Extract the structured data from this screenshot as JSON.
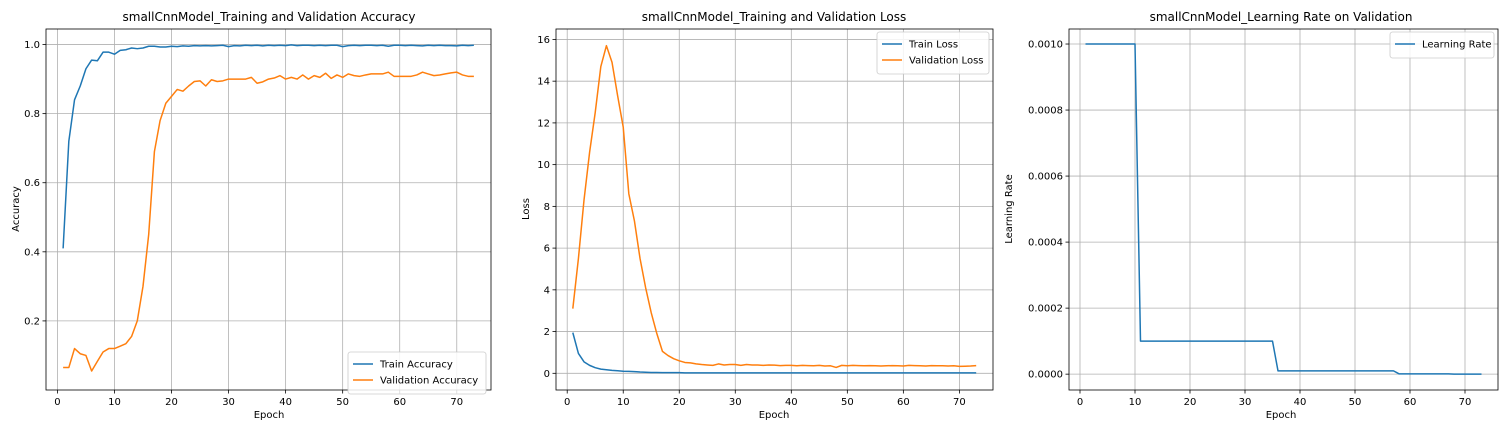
{
  "chart_data": [
    {
      "type": "line",
      "title": "smallCnnModel_Training and Validation Accuracy",
      "xlabel": "Epoch",
      "ylabel": "Accuracy",
      "xlim": [
        -2,
        76
      ],
      "ylim": [
        0.0,
        1.045
      ],
      "xticks": [
        0,
        10,
        20,
        30,
        40,
        50,
        60,
        70
      ],
      "yticks": [
        0.2,
        0.4,
        0.6,
        0.8,
        1.0
      ],
      "ytick_labels": [
        "0.2",
        "0.4",
        "0.6",
        "0.8",
        "1.0"
      ],
      "grid": true,
      "legend": "lower-right",
      "series": [
        {
          "name": "Train Accuracy",
          "color": "#1f77b4",
          "x": [
            1,
            2,
            3,
            4,
            5,
            6,
            7,
            8,
            9,
            10,
            11,
            12,
            13,
            14,
            15,
            16,
            17,
            18,
            19,
            20,
            21,
            22,
            23,
            24,
            25,
            26,
            27,
            28,
            29,
            30,
            31,
            32,
            33,
            34,
            35,
            36,
            37,
            38,
            39,
            40,
            41,
            42,
            43,
            44,
            45,
            46,
            47,
            48,
            49,
            50,
            51,
            52,
            53,
            54,
            55,
            56,
            57,
            58,
            59,
            60,
            61,
            62,
            63,
            64,
            65,
            66,
            67,
            68,
            69,
            70,
            71,
            72,
            73
          ],
          "values": [
            0.41,
            0.72,
            0.84,
            0.88,
            0.93,
            0.955,
            0.953,
            0.978,
            0.978,
            0.972,
            0.983,
            0.985,
            0.99,
            0.988,
            0.99,
            0.995,
            0.995,
            0.993,
            0.993,
            0.995,
            0.994,
            0.996,
            0.995,
            0.997,
            0.996,
            0.997,
            0.996,
            0.997,
            0.998,
            0.994,
            0.997,
            0.996,
            0.998,
            0.997,
            0.998,
            0.996,
            0.998,
            0.997,
            0.998,
            0.997,
            0.999,
            0.997,
            0.998,
            0.998,
            0.997,
            0.998,
            0.997,
            0.998,
            0.998,
            0.994,
            0.997,
            0.998,
            0.997,
            0.998,
            0.998,
            0.997,
            0.998,
            0.995,
            0.998,
            0.998,
            0.997,
            0.998,
            0.997,
            0.996,
            0.998,
            0.997,
            0.998,
            0.997,
            0.997,
            0.996,
            0.998,
            0.997,
            0.998
          ]
        },
        {
          "name": "Validation Accuracy",
          "color": "#ff7f0e",
          "x": [
            1,
            2,
            3,
            4,
            5,
            6,
            7,
            8,
            9,
            10,
            11,
            12,
            13,
            14,
            15,
            16,
            17,
            18,
            19,
            20,
            21,
            22,
            23,
            24,
            25,
            26,
            27,
            28,
            29,
            30,
            31,
            32,
            33,
            34,
            35,
            36,
            37,
            38,
            39,
            40,
            41,
            42,
            43,
            44,
            45,
            46,
            47,
            48,
            49,
            50,
            51,
            52,
            53,
            54,
            55,
            56,
            57,
            58,
            59,
            60,
            61,
            62,
            63,
            64,
            65,
            66,
            67,
            68,
            69,
            70,
            71,
            72,
            73
          ],
          "values": [
            0.065,
            0.065,
            0.12,
            0.105,
            0.1,
            0.055,
            0.083,
            0.11,
            0.12,
            0.12,
            0.127,
            0.134,
            0.155,
            0.2,
            0.3,
            0.45,
            0.69,
            0.78,
            0.83,
            0.85,
            0.87,
            0.865,
            0.88,
            0.893,
            0.895,
            0.88,
            0.898,
            0.893,
            0.895,
            0.9,
            0.9,
            0.9,
            0.9,
            0.905,
            0.888,
            0.892,
            0.9,
            0.903,
            0.91,
            0.9,
            0.905,
            0.9,
            0.912,
            0.9,
            0.91,
            0.905,
            0.917,
            0.902,
            0.912,
            0.905,
            0.915,
            0.91,
            0.908,
            0.912,
            0.915,
            0.915,
            0.915,
            0.92,
            0.908,
            0.908,
            0.908,
            0.908,
            0.912,
            0.92,
            0.915,
            0.91,
            0.912,
            0.915,
            0.918,
            0.92,
            0.912,
            0.908,
            0.908
          ]
        }
      ]
    },
    {
      "type": "line",
      "title": "smallCnnModel_Training and Validation Loss",
      "xlabel": "Epoch",
      "ylabel": "Loss",
      "xlim": [
        -2,
        76
      ],
      "ylim": [
        -0.8,
        16.5
      ],
      "xticks": [
        0,
        10,
        20,
        30,
        40,
        50,
        60,
        70
      ],
      "yticks": [
        0,
        2,
        4,
        6,
        8,
        10,
        12,
        14,
        16
      ],
      "ytick_labels": [
        "0",
        "2",
        "4",
        "6",
        "8",
        "10",
        "12",
        "14",
        "16"
      ],
      "grid": true,
      "legend": "top-right",
      "series": [
        {
          "name": "Train Loss",
          "color": "#1f77b4",
          "x": [
            1,
            2,
            3,
            4,
            5,
            6,
            7,
            8,
            9,
            10,
            11,
            12,
            13,
            14,
            15,
            16,
            17,
            18,
            19,
            20,
            21,
            22,
            23,
            24,
            25,
            26,
            27,
            28,
            29,
            30,
            31,
            32,
            33,
            34,
            35,
            36,
            37,
            38,
            39,
            40,
            41,
            42,
            43,
            44,
            45,
            46,
            47,
            48,
            49,
            50,
            51,
            52,
            53,
            54,
            55,
            56,
            57,
            58,
            59,
            60,
            61,
            62,
            63,
            64,
            65,
            66,
            67,
            68,
            69,
            70,
            71,
            72,
            73
          ],
          "values": [
            1.95,
            0.95,
            0.55,
            0.38,
            0.27,
            0.2,
            0.17,
            0.14,
            0.12,
            0.1,
            0.09,
            0.08,
            0.06,
            0.05,
            0.04,
            0.04,
            0.03,
            0.03,
            0.03,
            0.03,
            0.02,
            0.02,
            0.02,
            0.02,
            0.02,
            0.02,
            0.02,
            0.02,
            0.02,
            0.02,
            0.02,
            0.02,
            0.02,
            0.02,
            0.02,
            0.02,
            0.02,
            0.02,
            0.02,
            0.02,
            0.02,
            0.02,
            0.02,
            0.02,
            0.02,
            0.02,
            0.02,
            0.02,
            0.02,
            0.02,
            0.02,
            0.02,
            0.02,
            0.02,
            0.02,
            0.02,
            0.02,
            0.02,
            0.02,
            0.02,
            0.02,
            0.02,
            0.02,
            0.02,
            0.02,
            0.02,
            0.02,
            0.02,
            0.02,
            0.02,
            0.02,
            0.02,
            0.02
          ]
        },
        {
          "name": "Validation Loss",
          "color": "#ff7f0e",
          "x": [
            1,
            2,
            3,
            4,
            5,
            6,
            7,
            8,
            9,
            10,
            11,
            12,
            13,
            14,
            15,
            16,
            17,
            18,
            19,
            20,
            21,
            22,
            23,
            24,
            25,
            26,
            27,
            28,
            29,
            30,
            31,
            32,
            33,
            34,
            35,
            36,
            37,
            38,
            39,
            40,
            41,
            42,
            43,
            44,
            45,
            46,
            47,
            48,
            49,
            50,
            51,
            52,
            53,
            54,
            55,
            56,
            57,
            58,
            59,
            60,
            61,
            62,
            63,
            64,
            65,
            66,
            67,
            68,
            69,
            70,
            71,
            72,
            73
          ],
          "values": [
            3.1,
            5.5,
            8.3,
            10.6,
            12.5,
            14.7,
            15.7,
            14.9,
            13.3,
            11.8,
            8.6,
            7.3,
            5.5,
            4.1,
            2.9,
            1.9,
            1.05,
            0.85,
            0.7,
            0.6,
            0.52,
            0.5,
            0.45,
            0.42,
            0.4,
            0.38,
            0.45,
            0.4,
            0.42,
            0.42,
            0.38,
            0.42,
            0.4,
            0.4,
            0.38,
            0.4,
            0.39,
            0.37,
            0.38,
            0.38,
            0.36,
            0.38,
            0.37,
            0.36,
            0.38,
            0.35,
            0.36,
            0.28,
            0.38,
            0.36,
            0.38,
            0.37,
            0.36,
            0.37,
            0.36,
            0.35,
            0.36,
            0.37,
            0.36,
            0.35,
            0.38,
            0.37,
            0.36,
            0.35,
            0.37,
            0.36,
            0.36,
            0.35,
            0.36,
            0.33,
            0.34,
            0.35,
            0.37
          ]
        }
      ]
    },
    {
      "type": "line",
      "title": "smallCnnModel_Learning Rate on Validation",
      "xlabel": "Epoch",
      "ylabel": "Learning Rate",
      "xlim": [
        -2,
        76
      ],
      "ylim": [
        -4.8e-05,
        0.0010455
      ],
      "xticks": [
        0,
        10,
        20,
        30,
        40,
        50,
        60,
        70
      ],
      "yticks": [
        0.0,
        0.0002,
        0.0004,
        0.0006,
        0.0008,
        0.001
      ],
      "ytick_labels": [
        "0.0000",
        "0.0002",
        "0.0004",
        "0.0006",
        "0.0008",
        "0.0010"
      ],
      "grid": true,
      "legend": "top-right",
      "series": [
        {
          "name": "Learning Rate",
          "color": "#1f77b4",
          "x": [
            1,
            2,
            3,
            4,
            5,
            6,
            7,
            8,
            9,
            10,
            11,
            12,
            13,
            14,
            15,
            16,
            17,
            18,
            19,
            20,
            21,
            22,
            23,
            24,
            25,
            26,
            27,
            28,
            29,
            30,
            31,
            32,
            33,
            34,
            35,
            36,
            37,
            38,
            39,
            40,
            41,
            42,
            43,
            44,
            45,
            46,
            47,
            48,
            49,
            50,
            51,
            52,
            53,
            54,
            55,
            56,
            57,
            58,
            59,
            60,
            61,
            62,
            63,
            64,
            65,
            66,
            67,
            68,
            69,
            70,
            71,
            72,
            73
          ],
          "values": [
            0.001,
            0.001,
            0.001,
            0.001,
            0.001,
            0.001,
            0.001,
            0.001,
            0.001,
            0.001,
            0.0001,
            0.0001,
            0.0001,
            0.0001,
            0.0001,
            0.0001,
            0.0001,
            0.0001,
            0.0001,
            0.0001,
            0.0001,
            0.0001,
            0.0001,
            0.0001,
            0.0001,
            0.0001,
            0.0001,
            0.0001,
            0.0001,
            0.0001,
            0.0001,
            0.0001,
            0.0001,
            0.0001,
            0.0001,
            1e-05,
            1e-05,
            1e-05,
            1e-05,
            1e-05,
            1e-05,
            1e-05,
            1e-05,
            1e-05,
            1e-05,
            1e-05,
            1e-05,
            1e-05,
            1e-05,
            1e-05,
            1e-05,
            1e-05,
            1e-05,
            1e-05,
            1e-05,
            1e-05,
            1e-05,
            1e-06,
            1e-06,
            1e-06,
            1e-06,
            1e-06,
            1e-06,
            1e-06,
            1e-06,
            1e-06,
            1e-06,
            1e-07,
            1e-07,
            1e-07,
            1e-07,
            1e-07,
            1e-07
          ]
        }
      ]
    }
  ]
}
